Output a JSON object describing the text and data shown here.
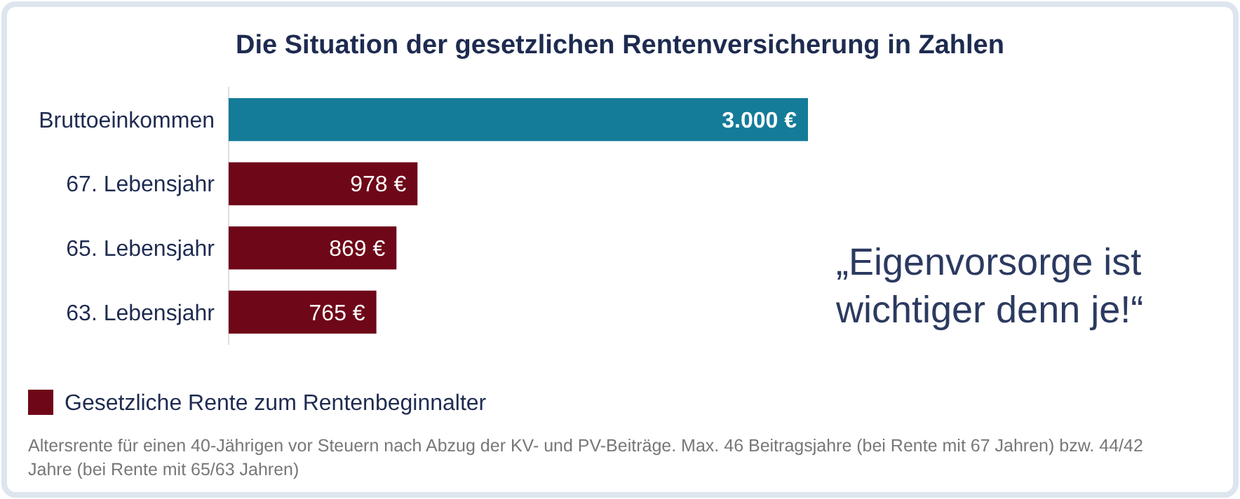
{
  "chart_data": {
    "type": "bar",
    "orientation": "horizontal",
    "title": "Die Situation der gesetzlichen Rentenversicherung in Zahlen",
    "categories": [
      "Bruttoeinkommen",
      "67. Lebensjahr",
      "65. Lebensjahr",
      "63. Lebensjahr"
    ],
    "series": [
      {
        "color": "#147b99",
        "values": [
          3000,
          null,
          null,
          null
        ],
        "value_labels": [
          "3.000 €",
          null,
          null,
          null
        ]
      },
      {
        "name": "Gesetzliche Rente zum Rentenbeginnalter",
        "color": "#6e0718",
        "values": [
          null,
          978,
          869,
          765
        ],
        "value_labels": [
          null,
          "978 €",
          "869 €",
          "765 €"
        ]
      }
    ],
    "legend": "bottom left",
    "annotations": [
      "„Eigenvorsorge ist\nwichtiger denn je!“",
      "Altersrente für einen 40-Jährigen vor Steuern nach Abzug der KV- und PV-Beiträge. Max. 46 Beitragsjahre (bei Rente mit 67 Jahren) bzw. 44/42\nJahre (bei Rente mit 65/63 Jahren)"
    ]
  }
}
